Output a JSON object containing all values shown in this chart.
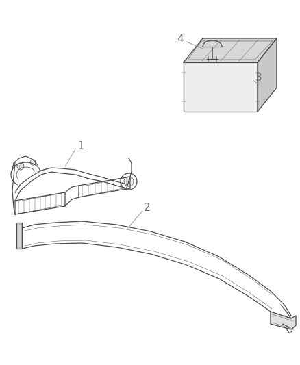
{
  "background_color": "#ffffff",
  "line_color": "#4a4a4a",
  "label_color": "#666666",
  "leader_color": "#999999",
  "figsize": [
    4.38,
    5.33
  ],
  "dpi": 100
}
